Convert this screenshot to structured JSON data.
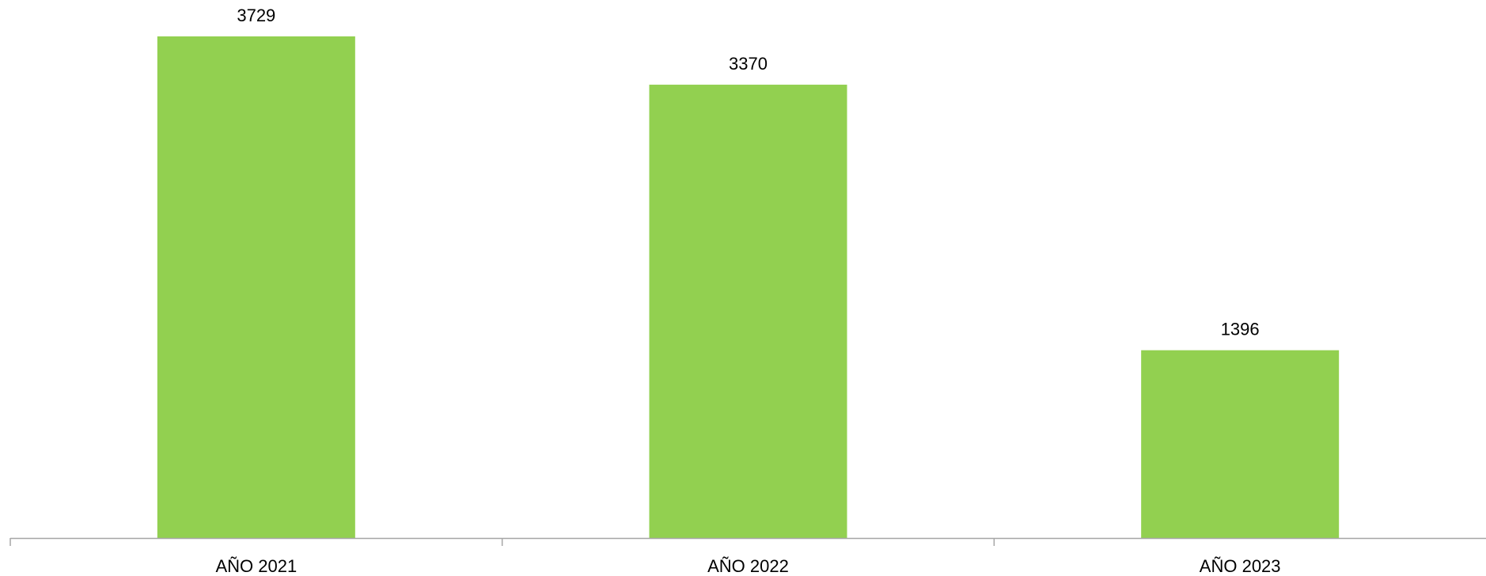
{
  "chart_data": {
    "type": "bar",
    "title": "",
    "xlabel": "",
    "ylabel": "",
    "categories": [
      "AÑO 2021",
      "AÑO 2022",
      "AÑO 2023"
    ],
    "values": [
      3729,
      3370,
      1396
    ],
    "ylim": [
      0,
      3729
    ],
    "grid": false,
    "legend": "none",
    "bar_color": "#92D050",
    "axis_color": "#A6A6A6",
    "show_data_labels": true
  }
}
